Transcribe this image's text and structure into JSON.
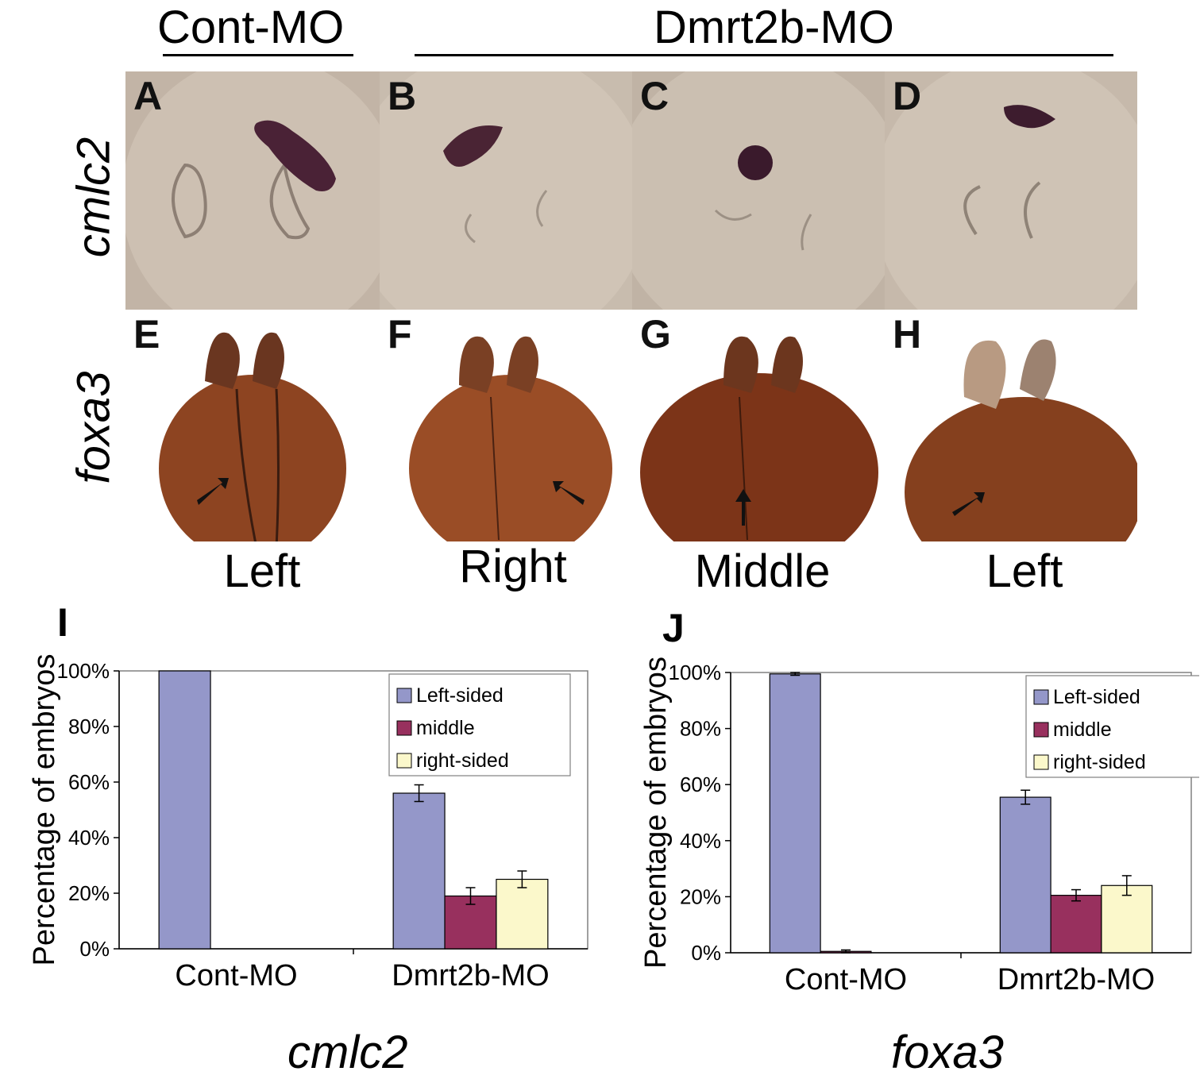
{
  "header": {
    "groups": [
      {
        "label": "Cont-MO"
      },
      {
        "label": "Dmrt2b-MO"
      }
    ]
  },
  "rows": [
    {
      "label": "cmlc2"
    },
    {
      "label": "foxa3"
    }
  ],
  "panels": [
    {
      "letter": "A"
    },
    {
      "letter": "B"
    },
    {
      "letter": "C"
    },
    {
      "letter": "D"
    },
    {
      "letter": "E"
    },
    {
      "letter": "F"
    },
    {
      "letter": "G"
    },
    {
      "letter": "H"
    }
  ],
  "side_labels": [
    "Left",
    "Right",
    "Middle",
    "Left"
  ],
  "colors": {
    "left_sided": "#9497c9",
    "middle": "#98305e",
    "right_sided": "#fbf8cb",
    "cmlc2_bg": "#c5b8aa",
    "cmlc2_stain": "#3f2030",
    "foxa3_embryo": "#8c4320"
  },
  "chart_data": [
    {
      "letter": "I",
      "type": "bar",
      "caption": "cmlc2",
      "ylabel": "Percentage of embryos",
      "ylim": [
        0,
        100
      ],
      "yticks": [
        "0%",
        "20%",
        "40%",
        "60%",
        "80%",
        "100%"
      ],
      "categories": [
        "Cont-MO",
        "Dmrt2b-MO"
      ],
      "series": [
        {
          "name": "Left-sided",
          "values": [
            100,
            56
          ],
          "errors": [
            0,
            3
          ]
        },
        {
          "name": "middle",
          "values": [
            0,
            19
          ],
          "errors": [
            0,
            3
          ]
        },
        {
          "name": "right-sided",
          "values": [
            0,
            25
          ],
          "errors": [
            0,
            3
          ]
        }
      ],
      "legend": "top-right",
      "grid": false
    },
    {
      "letter": "J",
      "type": "bar",
      "caption": "foxa3",
      "ylabel": "Percentage of embryos",
      "ylim": [
        0,
        100
      ],
      "yticks": [
        "0%",
        "20%",
        "40%",
        "60%",
        "80%",
        "100%"
      ],
      "categories": [
        "Cont-MO",
        "Dmrt2b-MO"
      ],
      "series": [
        {
          "name": "Left-sided",
          "values": [
            99.5,
            55.5
          ],
          "errors": [
            0.5,
            2.5
          ]
        },
        {
          "name": "middle",
          "values": [
            0.5,
            20.5
          ],
          "errors": [
            0.5,
            2
          ]
        },
        {
          "name": "right-sided",
          "values": [
            0,
            24
          ],
          "errors": [
            0,
            3.5
          ]
        }
      ],
      "legend": "top-right",
      "grid": false
    }
  ]
}
